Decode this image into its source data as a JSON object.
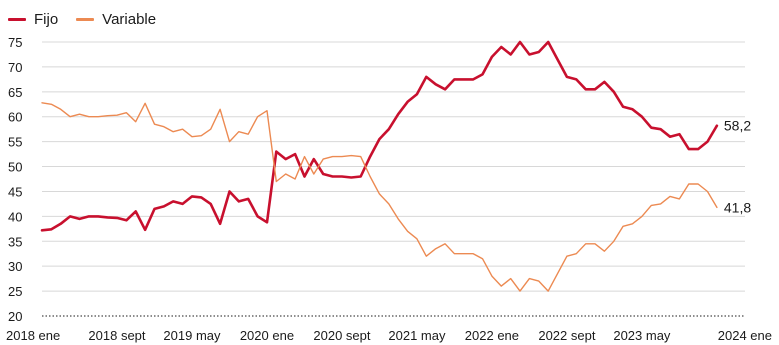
{
  "colors": {
    "fijo": "#c8102e",
    "variable": "#ec8a52",
    "grid": "#d8d8d8",
    "axis": "#1b1b1b"
  },
  "chart_data": {
    "type": "line",
    "title": "",
    "xlabel": "",
    "ylabel": "",
    "ylim": [
      20,
      75
    ],
    "yticks": [
      20,
      25,
      30,
      35,
      40,
      45,
      50,
      55,
      60,
      65,
      70,
      75
    ],
    "xlim": [
      "2018-01",
      "2024-04"
    ],
    "xticks": [
      {
        "label": "2018 ene",
        "date": "2018-01"
      },
      {
        "label": "2018 sept",
        "date": "2018-09"
      },
      {
        "label": "2019 may",
        "date": "2019-05"
      },
      {
        "label": "2020 ene",
        "date": "2020-01"
      },
      {
        "label": "2020 sept",
        "date": "2020-09"
      },
      {
        "label": "2021 may",
        "date": "2021-05"
      },
      {
        "label": "2022 ene",
        "date": "2022-01"
      },
      {
        "label": "2022 sept",
        "date": "2022-09"
      },
      {
        "label": "2023 may",
        "date": "2023-05"
      },
      {
        "label": "2024 ene",
        "date": "2024-01"
      }
    ],
    "grid": true,
    "legend_position": "top-left",
    "series": [
      {
        "name": "Fijo",
        "end_label": "58,2",
        "points": [
          [
            "2018-01",
            37.2
          ],
          [
            "2018-02",
            37.4
          ],
          [
            "2018-03",
            38.5
          ],
          [
            "2018-04",
            40.0
          ],
          [
            "2018-05",
            39.5
          ],
          [
            "2018-06",
            40.0
          ],
          [
            "2018-07",
            40.0
          ],
          [
            "2018-08",
            39.8
          ],
          [
            "2018-09",
            39.7
          ],
          [
            "2018-10",
            39.2
          ],
          [
            "2018-11",
            41.0
          ],
          [
            "2018-12",
            37.3
          ],
          [
            "2019-01",
            41.5
          ],
          [
            "2019-02",
            42.0
          ],
          [
            "2019-03",
            43.0
          ],
          [
            "2019-04",
            42.5
          ],
          [
            "2019-05",
            44.0
          ],
          [
            "2019-06",
            43.8
          ],
          [
            "2019-07",
            42.5
          ],
          [
            "2019-08",
            38.5
          ],
          [
            "2019-09",
            45.0
          ],
          [
            "2019-10",
            43.0
          ],
          [
            "2019-11",
            43.5
          ],
          [
            "2019-12",
            40.0
          ],
          [
            "2020-01",
            38.8
          ],
          [
            "2020-02",
            53.0
          ],
          [
            "2020-03",
            51.5
          ],
          [
            "2020-04",
            52.5
          ],
          [
            "2020-05",
            48.0
          ],
          [
            "2020-06",
            51.5
          ],
          [
            "2020-07",
            48.5
          ],
          [
            "2020-08",
            48.0
          ],
          [
            "2020-09",
            48.0
          ],
          [
            "2020-10",
            47.8
          ],
          [
            "2020-11",
            48.0
          ],
          [
            "2020-12",
            52.0
          ],
          [
            "2021-01",
            55.5
          ],
          [
            "2021-02",
            57.5
          ],
          [
            "2021-03",
            60.5
          ],
          [
            "2021-04",
            63.0
          ],
          [
            "2021-05",
            64.5
          ],
          [
            "2021-06",
            68.0
          ],
          [
            "2021-07",
            66.5
          ],
          [
            "2021-08",
            65.5
          ],
          [
            "2021-09",
            67.5
          ],
          [
            "2021-10",
            67.5
          ],
          [
            "2021-11",
            67.5
          ],
          [
            "2021-12",
            68.5
          ],
          [
            "2022-01",
            72.0
          ],
          [
            "2022-02",
            74.0
          ],
          [
            "2022-03",
            72.5
          ],
          [
            "2022-04",
            75.0
          ],
          [
            "2022-05",
            72.5
          ],
          [
            "2022-06",
            73.0
          ],
          [
            "2022-07",
            75.0
          ],
          [
            "2022-08",
            71.5
          ],
          [
            "2022-09",
            68.0
          ],
          [
            "2022-10",
            67.5
          ],
          [
            "2022-11",
            65.5
          ],
          [
            "2022-12",
            65.5
          ],
          [
            "2023-01",
            67.0
          ],
          [
            "2023-02",
            65.0
          ],
          [
            "2023-03",
            62.0
          ],
          [
            "2023-04",
            61.5
          ],
          [
            "2023-05",
            60.0
          ],
          [
            "2023-06",
            57.8
          ],
          [
            "2023-07",
            57.5
          ],
          [
            "2023-08",
            56.0
          ],
          [
            "2023-09",
            56.5
          ],
          [
            "2023-10",
            53.5
          ],
          [
            "2023-11",
            53.5
          ],
          [
            "2023-12",
            55.0
          ],
          [
            "2024-01",
            58.2
          ]
        ]
      },
      {
        "name": "Variable",
        "end_label": "41,8",
        "points": [
          [
            "2018-01",
            62.8
          ],
          [
            "2018-02",
            62.5
          ],
          [
            "2018-03",
            61.5
          ],
          [
            "2018-04",
            60.0
          ],
          [
            "2018-05",
            60.5
          ],
          [
            "2018-06",
            60.0
          ],
          [
            "2018-07",
            60.0
          ],
          [
            "2018-08",
            60.2
          ],
          [
            "2018-09",
            60.3
          ],
          [
            "2018-10",
            60.8
          ],
          [
            "2018-11",
            59.0
          ],
          [
            "2018-12",
            62.7
          ],
          [
            "2019-01",
            58.5
          ],
          [
            "2019-02",
            58.0
          ],
          [
            "2019-03",
            57.0
          ],
          [
            "2019-04",
            57.5
          ],
          [
            "2019-05",
            56.0
          ],
          [
            "2019-06",
            56.2
          ],
          [
            "2019-07",
            57.5
          ],
          [
            "2019-08",
            61.5
          ],
          [
            "2019-09",
            55.0
          ],
          [
            "2019-10",
            57.0
          ],
          [
            "2019-11",
            56.5
          ],
          [
            "2019-12",
            60.0
          ],
          [
            "2020-01",
            61.2
          ],
          [
            "2020-02",
            47.0
          ],
          [
            "2020-03",
            48.5
          ],
          [
            "2020-04",
            47.5
          ],
          [
            "2020-05",
            52.0
          ],
          [
            "2020-06",
            48.5
          ],
          [
            "2020-07",
            51.5
          ],
          [
            "2020-08",
            52.0
          ],
          [
            "2020-09",
            52.0
          ],
          [
            "2020-10",
            52.2
          ],
          [
            "2020-11",
            52.0
          ],
          [
            "2020-12",
            48.0
          ],
          [
            "2021-01",
            44.5
          ],
          [
            "2021-02",
            42.5
          ],
          [
            "2021-03",
            39.5
          ],
          [
            "2021-04",
            37.0
          ],
          [
            "2021-05",
            35.5
          ],
          [
            "2021-06",
            32.0
          ],
          [
            "2021-07",
            33.5
          ],
          [
            "2021-08",
            34.5
          ],
          [
            "2021-09",
            32.5
          ],
          [
            "2021-10",
            32.5
          ],
          [
            "2021-11",
            32.5
          ],
          [
            "2021-12",
            31.5
          ],
          [
            "2022-01",
            28.0
          ],
          [
            "2022-02",
            26.0
          ],
          [
            "2022-03",
            27.5
          ],
          [
            "2022-04",
            25.0
          ],
          [
            "2022-05",
            27.5
          ],
          [
            "2022-06",
            27.0
          ],
          [
            "2022-07",
            25.0
          ],
          [
            "2022-08",
            28.5
          ],
          [
            "2022-09",
            32.0
          ],
          [
            "2022-10",
            32.5
          ],
          [
            "2022-11",
            34.5
          ],
          [
            "2022-12",
            34.5
          ],
          [
            "2023-01",
            33.0
          ],
          [
            "2023-02",
            35.0
          ],
          [
            "2023-03",
            38.0
          ],
          [
            "2023-04",
            38.5
          ],
          [
            "2023-05",
            40.0
          ],
          [
            "2023-06",
            42.2
          ],
          [
            "2023-07",
            42.5
          ],
          [
            "2023-08",
            44.0
          ],
          [
            "2023-09",
            43.5
          ],
          [
            "2023-10",
            46.5
          ],
          [
            "2023-11",
            46.5
          ],
          [
            "2023-12",
            45.0
          ],
          [
            "2024-01",
            41.8
          ]
        ]
      }
    ]
  }
}
